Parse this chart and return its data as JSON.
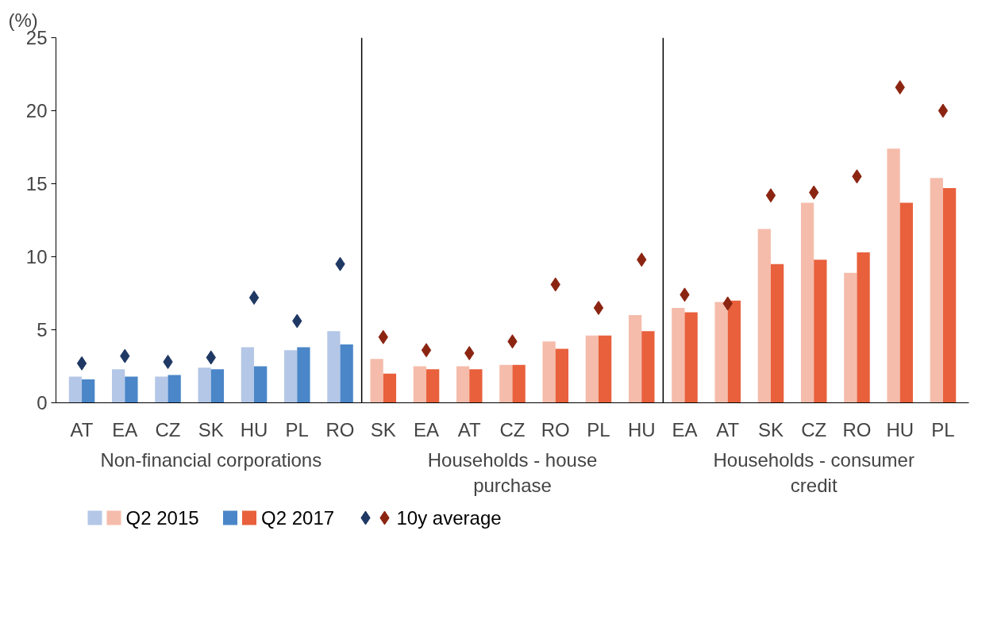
{
  "chart_data": {
    "type": "bar",
    "ylabel": "(%)",
    "categories": [
      "AT",
      "EA",
      "CZ",
      "SK",
      "HU",
      "PL",
      "RO",
      "SK",
      "EA",
      "AT",
      "CZ",
      "RO",
      "PL",
      "HU",
      "EA",
      "AT",
      "SK",
      "CZ",
      "RO",
      "HU",
      "PL"
    ],
    "annotations": [
      "Non-financial corporations",
      "Households - house\npurchase",
      "Households - consumer\ncredit"
    ],
    "series": [
      {
        "name": "Q2 2015",
        "colors": [
          "#b4c7e7",
          "#b4c7e7",
          "#b4c7e7",
          "#b4c7e7",
          "#b4c7e7",
          "#b4c7e7",
          "#b4c7e7",
          "#f5bcab",
          "#f5bcab",
          "#f5bcab",
          "#f5bcab",
          "#f5bcab",
          "#f5bcab",
          "#f5bcab",
          "#f5bcab",
          "#f5bcab",
          "#f5bcab",
          "#f5bcab",
          "#f5bcab",
          "#f5bcab",
          "#f5bcab"
        ],
        "values": [
          1.8,
          2.3,
          1.8,
          2.4,
          3.8,
          3.6,
          4.9,
          3.0,
          2.5,
          2.5,
          2.6,
          4.2,
          4.6,
          6.0,
          6.5,
          6.9,
          11.9,
          13.7,
          8.9,
          17.4,
          15.4
        ]
      },
      {
        "name": "Q2 2017",
        "colors": [
          "#4a86c8",
          "#4a86c8",
          "#4a86c8",
          "#4a86c8",
          "#4a86c8",
          "#4a86c8",
          "#4a86c8",
          "#e8603c",
          "#e8603c",
          "#e8603c",
          "#e8603c",
          "#e8603c",
          "#e8603c",
          "#e8603c",
          "#e8603c",
          "#e8603c",
          "#e8603c",
          "#e8603c",
          "#e8603c",
          "#e8603c",
          "#e8603c"
        ],
        "values": [
          1.6,
          1.8,
          1.9,
          2.3,
          2.5,
          3.8,
          4.0,
          2.0,
          2.3,
          2.3,
          2.6,
          3.7,
          4.6,
          4.9,
          6.2,
          7.0,
          9.5,
          9.8,
          10.3,
          13.7,
          14.7
        ]
      },
      {
        "name": "10y average",
        "type": "scatter",
        "colors": [
          "#1f3864",
          "#1f3864",
          "#1f3864",
          "#1f3864",
          "#1f3864",
          "#1f3864",
          "#1f3864",
          "#8b2512",
          "#8b2512",
          "#8b2512",
          "#8b2512",
          "#8b2512",
          "#8b2512",
          "#8b2512",
          "#8b2512",
          "#8b2512",
          "#8b2512",
          "#8b2512",
          "#8b2512",
          "#8b2512",
          "#8b2512"
        ],
        "values": [
          2.7,
          3.2,
          2.8,
          3.1,
          7.2,
          5.6,
          9.5,
          4.5,
          3.6,
          3.4,
          4.2,
          8.1,
          6.5,
          9.8,
          7.4,
          6.8,
          14.2,
          14.4,
          15.5,
          21.6,
          20.0
        ]
      }
    ],
    "ylim": [
      0,
      25
    ],
    "yticks": [
      0,
      5,
      10,
      15,
      20,
      25
    ],
    "grid": false,
    "legend": "bottom",
    "marker": "diamond"
  }
}
